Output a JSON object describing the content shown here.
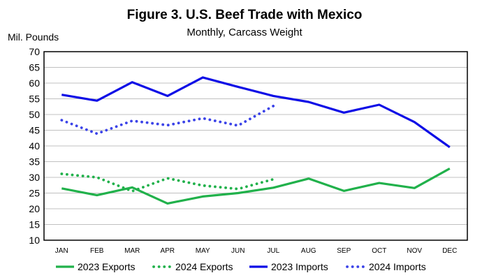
{
  "chart_data": {
    "type": "line",
    "title": "Figure 3. U.S. Beef Trade with Mexico",
    "subtitle": "Monthly, Carcass Weight",
    "ylabel": "Mil. Pounds",
    "xlabel": "",
    "ylim": [
      10,
      70
    ],
    "yticks": [
      10,
      15,
      20,
      25,
      30,
      35,
      40,
      45,
      50,
      55,
      60,
      65,
      70
    ],
    "grid": true,
    "legend_position": "bottom",
    "categories": [
      "JAN",
      "FEB",
      "MAR",
      "APR",
      "MAY",
      "JUN",
      "JUL",
      "AUG",
      "SEP",
      "OCT",
      "NOV",
      "DEC"
    ],
    "series": [
      {
        "name": "2023 Exports",
        "color": "#21b14b",
        "style": "solid",
        "values": [
          26.5,
          24.3,
          26.8,
          21.7,
          23.9,
          25.0,
          26.7,
          29.6,
          25.7,
          28.2,
          26.6,
          32.8
        ]
      },
      {
        "name": "2024 Exports",
        "color": "#21b14b",
        "style": "dotted",
        "values": [
          31.1,
          30.0,
          25.6,
          29.7,
          27.4,
          26.3,
          29.4,
          null,
          null,
          null,
          null,
          null
        ]
      },
      {
        "name": "2023 Imports",
        "color": "#0e0ee6",
        "style": "solid",
        "values": [
          56.3,
          54.4,
          60.3,
          55.9,
          61.8,
          58.8,
          55.9,
          54.0,
          50.6,
          53.1,
          47.6,
          39.6
        ]
      },
      {
        "name": "2024 Imports",
        "color": "#3b43e8",
        "style": "dotted",
        "values": [
          48.2,
          43.9,
          48.0,
          46.6,
          48.8,
          46.5,
          52.7,
          null,
          null,
          null,
          null,
          null
        ]
      }
    ]
  }
}
